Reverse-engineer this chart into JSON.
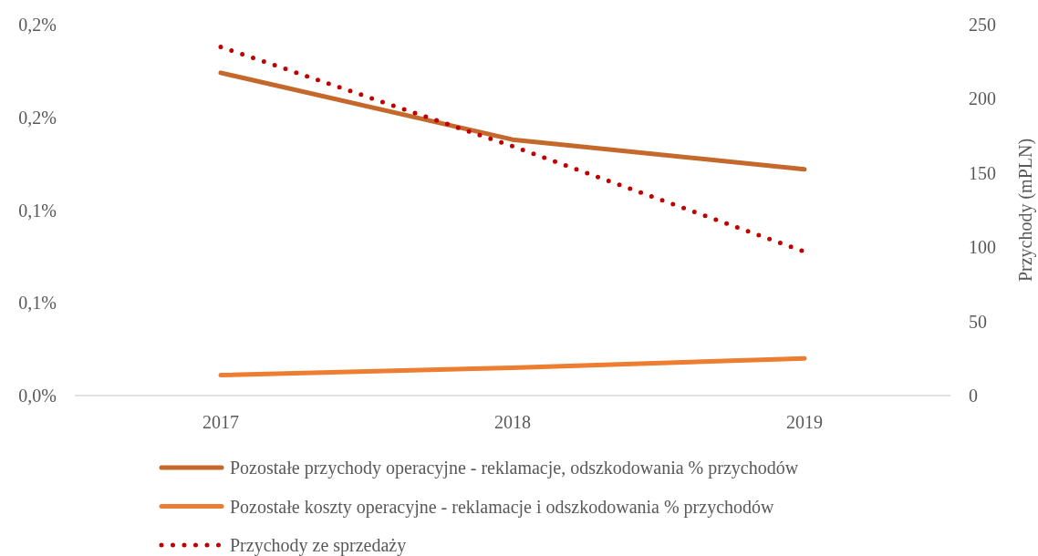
{
  "chart_data": {
    "type": "line",
    "categories": [
      "2017",
      "2018",
      "2019"
    ],
    "series": [
      {
        "name": "Pozostałe przychody operacyjne - reklamacje, odszkodowania % przychodów",
        "color": "#c5682b",
        "values": [
          0.174,
          0.138,
          0.122
        ]
      },
      {
        "name": "Pozostałe koszty operacyjne - reklamacje i odszkodowania % przychodów",
        "color": "#ed7d31",
        "values": [
          0.011,
          0.015,
          0.02
        ]
      },
      {
        "name": "Przychody ze sprzedaży",
        "color": "#c00000",
        "values": [
          235,
          168,
          97
        ],
        "axis": "y2",
        "line_style": "dotted"
      }
    ],
    "ylim": [
      0,
      0.2
    ],
    "yticks": [
      {
        "value": 0,
        "label": "0,0%"
      },
      {
        "value": 0.05,
        "label": "0,1%"
      },
      {
        "value": 0.1,
        "label": "0,1%"
      },
      {
        "value": 0.15,
        "label": "0,2%"
      },
      {
        "value": 0.2,
        "label": "0,2%"
      }
    ],
    "y2lim": [
      0,
      250
    ],
    "y2ticks": [
      0,
      50,
      100,
      150,
      200,
      250
    ],
    "y2label": "Przychody (mPLN)",
    "legend": "bottom",
    "line_style": "solid"
  }
}
